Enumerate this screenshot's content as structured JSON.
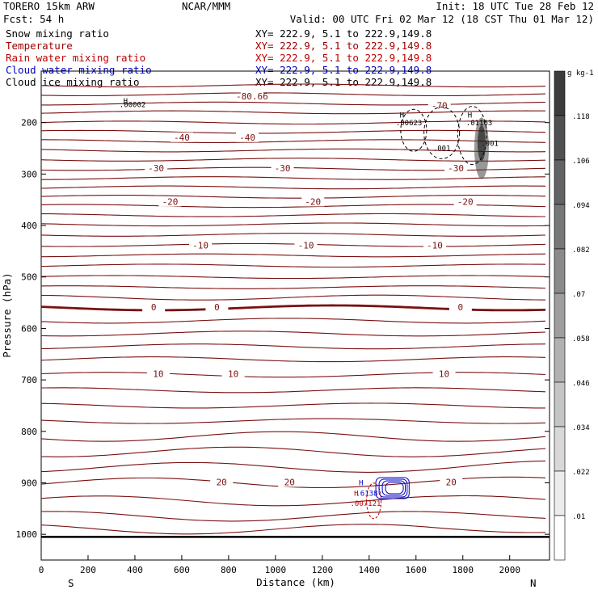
{
  "header": {
    "model": "TORERO  15km ARW",
    "org": "NCAR/MMM",
    "init": "Init: 18 UTC Tue 28 Feb 12",
    "fcst": "Fcst:   54 h",
    "valid": "Valid: 00 UTC Fri 02 Mar 12 (18 CST Thu 01 Mar 12)"
  },
  "legend": [
    {
      "label": "Snow mixing ratio",
      "xy": "XY= 222.9,  5.1 to 222.9,149.8",
      "color": "#000000"
    },
    {
      "label": "Temperature",
      "xy": "XY= 222.9,  5.1 to 222.9,149.8",
      "color": "#a00000"
    },
    {
      "label": "Rain water mixing ratio",
      "xy": "XY= 222.9,  5.1 to 222.9,149.8",
      "color": "#c00000"
    },
    {
      "label": "Cloud water mixing ratio",
      "xy": "XY= 222.9,  5.1 to 222.9,149.8",
      "color": "#0000c0"
    },
    {
      "label": "Cloud ice mixing ratio",
      "xy": "XY= 222.9,  5.1 to 222.9,149.8",
      "color": "#000000"
    }
  ],
  "chart_data": {
    "type": "line",
    "title": "Vertical cross section",
    "xlabel": "Distance (km)",
    "ylabel": "Pressure (hPa)",
    "xlim": [
      0,
      2170
    ],
    "ylim": [
      1050,
      100
    ],
    "x_ticks": [
      0,
      200,
      400,
      600,
      800,
      1000,
      1200,
      1400,
      1600,
      1800,
      2000
    ],
    "y_ticks": [
      200,
      300,
      400,
      500,
      600,
      700,
      800,
      900,
      1000
    ],
    "x_end_labels": [
      "S",
      "N"
    ],
    "colorbar": {
      "unit": "g kg-1",
      "ticks": [
        ".01",
        ".022",
        ".034",
        ".046",
        ".058",
        ".07",
        ".082",
        ".094",
        ".106",
        ".118"
      ]
    },
    "temperature_contours": [
      {
        "label": "-80.66",
        "p": 150,
        "x": 900
      },
      {
        "label": "-70",
        "p": 168,
        "x": 1700
      },
      {
        "label": "-40",
        "p": 230,
        "x": 600
      },
      {
        "label": "-40",
        "p": 230,
        "x": 880
      },
      {
        "label": "-30",
        "p": 290,
        "x": 490
      },
      {
        "label": "-30",
        "p": 290,
        "x": 1030
      },
      {
        "label": "-30",
        "p": 290,
        "x": 1770
      },
      {
        "label": "-20",
        "p": 355,
        "x": 550
      },
      {
        "label": "-20",
        "p": 355,
        "x": 1160
      },
      {
        "label": "-20",
        "p": 355,
        "x": 1810
      },
      {
        "label": "-10",
        "p": 440,
        "x": 680
      },
      {
        "label": "-10",
        "p": 440,
        "x": 1130
      },
      {
        "label": "-10",
        "p": 440,
        "x": 1680
      },
      {
        "label": "0",
        "p": 560,
        "x": 480
      },
      {
        "label": "0",
        "p": 560,
        "x": 750
      },
      {
        "label": "0",
        "p": 560,
        "x": 1790
      },
      {
        "label": "10",
        "p": 690,
        "x": 500
      },
      {
        "label": "10",
        "p": 690,
        "x": 820
      },
      {
        "label": "10",
        "p": 690,
        "x": 1720
      },
      {
        "label": "20",
        "p": 900,
        "x": 770
      },
      {
        "label": "20",
        "p": 900,
        "x": 1060
      },
      {
        "label": "20",
        "p": 900,
        "x": 1750
      }
    ],
    "annotations": [
      {
        "text": "H",
        "p": 163,
        "x": 360,
        "color": "#000000"
      },
      {
        "text": ".00002",
        "p": 170,
        "x": 390,
        "color": "#000000"
      },
      {
        "text": "H",
        "p": 190,
        "x": 1540,
        "color": "#000000"
      },
      {
        "text": ".00623",
        "p": 205,
        "x": 1570,
        "color": "#000000"
      },
      {
        "text": "H",
        "p": 190,
        "x": 1830,
        "color": "#000000"
      },
      {
        "text": ".01163",
        "p": 205,
        "x": 1870,
        "color": "#000000"
      },
      {
        "text": ".001",
        "p": 255,
        "x": 1710,
        "color": "#000000"
      },
      {
        "text": ".001",
        "p": 245,
        "x": 1915,
        "color": "#000000"
      },
      {
        "text": "H",
        "p": 905,
        "x": 1365,
        "color": "#0000c0"
      },
      {
        "text": "H",
        "p": 925,
        "x": 1345,
        "color": "#c00000"
      },
      {
        "text": ".6138",
        "p": 925,
        "x": 1390,
        "color": "#0000c0"
      },
      {
        "text": ".007121",
        "p": 945,
        "x": 1385,
        "color": "#c00000"
      }
    ]
  }
}
